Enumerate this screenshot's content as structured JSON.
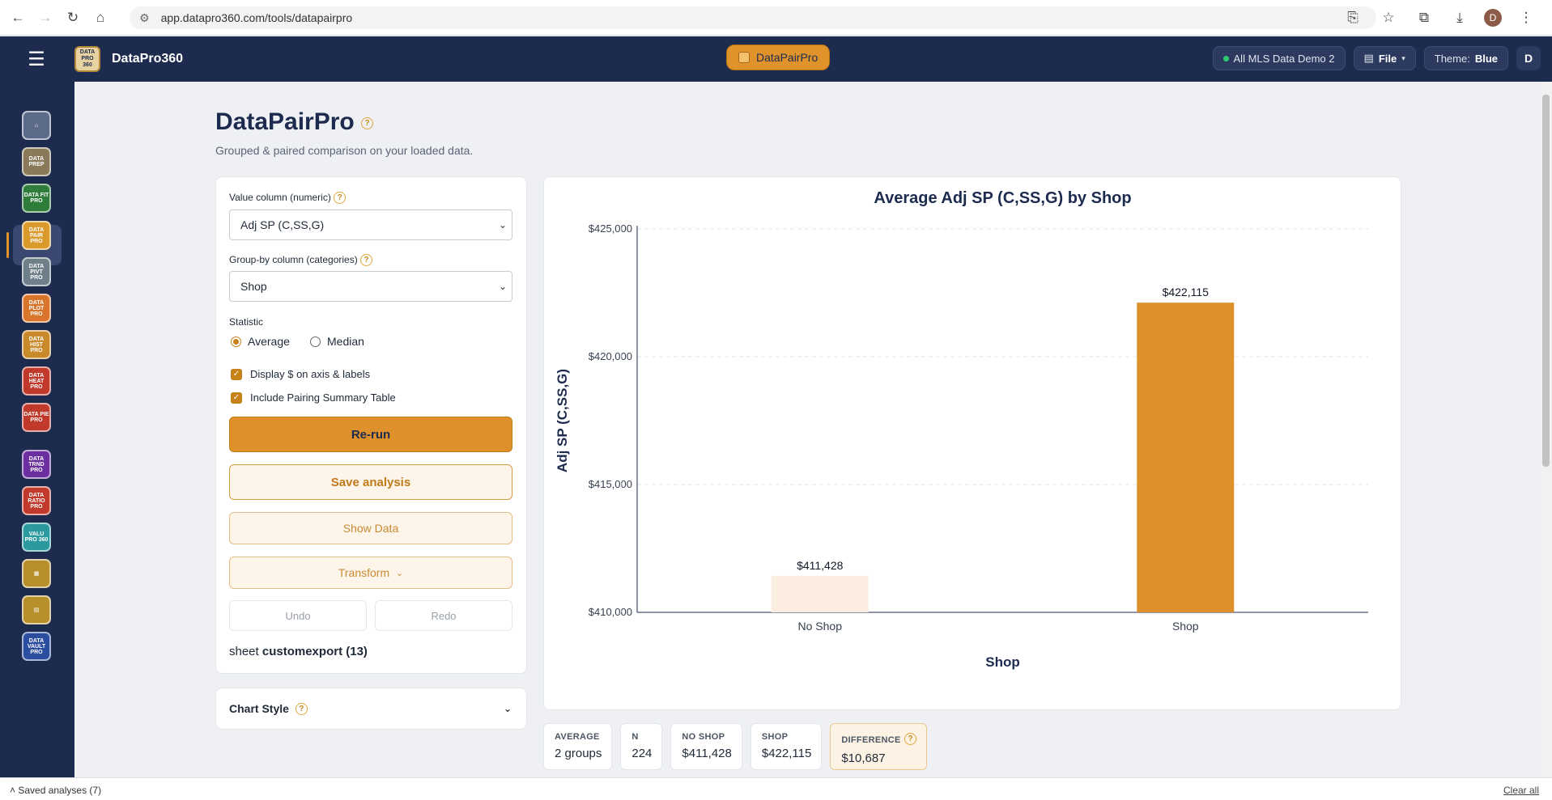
{
  "browser": {
    "url": "app.datapro360.com/tools/datapairpro",
    "profile_initial": "D"
  },
  "app": {
    "brand": "DataPro360",
    "logo_text": "DATA PRO 360",
    "active_tool": "DataPairPro",
    "dataset_chip": "All MLS Data Demo 2",
    "file_label": "File",
    "theme_label": "Theme:",
    "theme_value": "Blue",
    "user_initial": "D"
  },
  "sidebar": {
    "items": [
      {
        "name": "home",
        "text": "⌂"
      },
      {
        "name": "data-prep-pro",
        "text": "DATA PREP"
      },
      {
        "name": "data-fit-pro",
        "text": "DATA FIT PRO"
      },
      {
        "name": "data-pair-pro",
        "text": "DATA PAIR PRO"
      },
      {
        "name": "data-pivt-pro",
        "text": "DATA PIVT PRO"
      },
      {
        "name": "data-plot-pro",
        "text": "DATA PLOT PRO"
      },
      {
        "name": "data-hist-pro",
        "text": "DATA HIST PRO"
      },
      {
        "name": "data-heat-pro",
        "text": "DATA HEAT PRO"
      },
      {
        "name": "data-pie-pro",
        "text": "DATA PIE PRO"
      },
      {
        "name": "data-trnd-pro",
        "text": "DATA TRND PRO"
      },
      {
        "name": "data-ratio-pro",
        "text": "DATA RATIO PRO"
      },
      {
        "name": "valu-pro-360",
        "text": "VALU PRO 360"
      },
      {
        "name": "grid-tool",
        "text": "▦"
      },
      {
        "name": "report-tool",
        "text": "▤"
      },
      {
        "name": "data-vault-pro",
        "text": "DATA VAULT PRO"
      }
    ],
    "colors": [
      "#5d6b8a",
      "#8a7a5a",
      "#2f7d3a",
      "#d99a2b",
      "#6e7f8a",
      "#d9742b",
      "#c98a2b",
      "#c0392b",
      "#c0392b",
      "#6b2fa0",
      "#c0392b",
      "#2a9aa0",
      "#b8902b",
      "#b8902b",
      "#2b4ea0"
    ]
  },
  "page": {
    "title": "DataPairPro",
    "subtitle": "Grouped & paired comparison on your loaded data.",
    "help": "?"
  },
  "controls": {
    "value_column_label": "Value column (numeric)",
    "value_column_value": "Adj SP (C,SS,G)",
    "group_column_label": "Group-by column (categories)",
    "group_column_value": "Shop",
    "statistic_label": "Statistic",
    "stat_average": "Average",
    "stat_median": "Median",
    "display_dollar": "Display $ on axis & labels",
    "include_table": "Include Pairing Summary Table",
    "rerun": "Re-run",
    "save": "Save analysis",
    "show_data": "Show Data",
    "transform": "Transform",
    "undo": "Undo",
    "redo": "Redo",
    "sheet_prefix": "sheet",
    "sheet_name": "customexport (13)",
    "chart_style": "Chart Style"
  },
  "chart_data": {
    "type": "bar",
    "title": "Average Adj SP (C,SS,G) by Shop",
    "xlabel": "Shop",
    "ylabel": "Adj SP (C,SS,G)",
    "categories": [
      "No Shop",
      "Shop"
    ],
    "values": [
      411428,
      422115
    ],
    "value_labels": [
      "$411,428",
      "$422,115"
    ],
    "ylim": [
      410000,
      425000
    ],
    "yticks": [
      410000,
      415000,
      420000,
      425000
    ],
    "ytick_labels": [
      "$410,000",
      "$415,000",
      "$420,000",
      "$425,000"
    ],
    "bar_colors": [
      "#fbeee0",
      "#de912a"
    ],
    "grid": true
  },
  "stats": [
    {
      "key": "AVERAGE",
      "value": "2 groups"
    },
    {
      "key": "N",
      "value": "224"
    },
    {
      "key": "NO SHOP",
      "value": "$411,428"
    },
    {
      "key": "SHOP",
      "value": "$422,115"
    },
    {
      "key": "DIFFERENCE",
      "value": "$10,687"
    }
  ],
  "footer": {
    "saved": "Saved analyses (7)",
    "clear": "Clear all"
  }
}
